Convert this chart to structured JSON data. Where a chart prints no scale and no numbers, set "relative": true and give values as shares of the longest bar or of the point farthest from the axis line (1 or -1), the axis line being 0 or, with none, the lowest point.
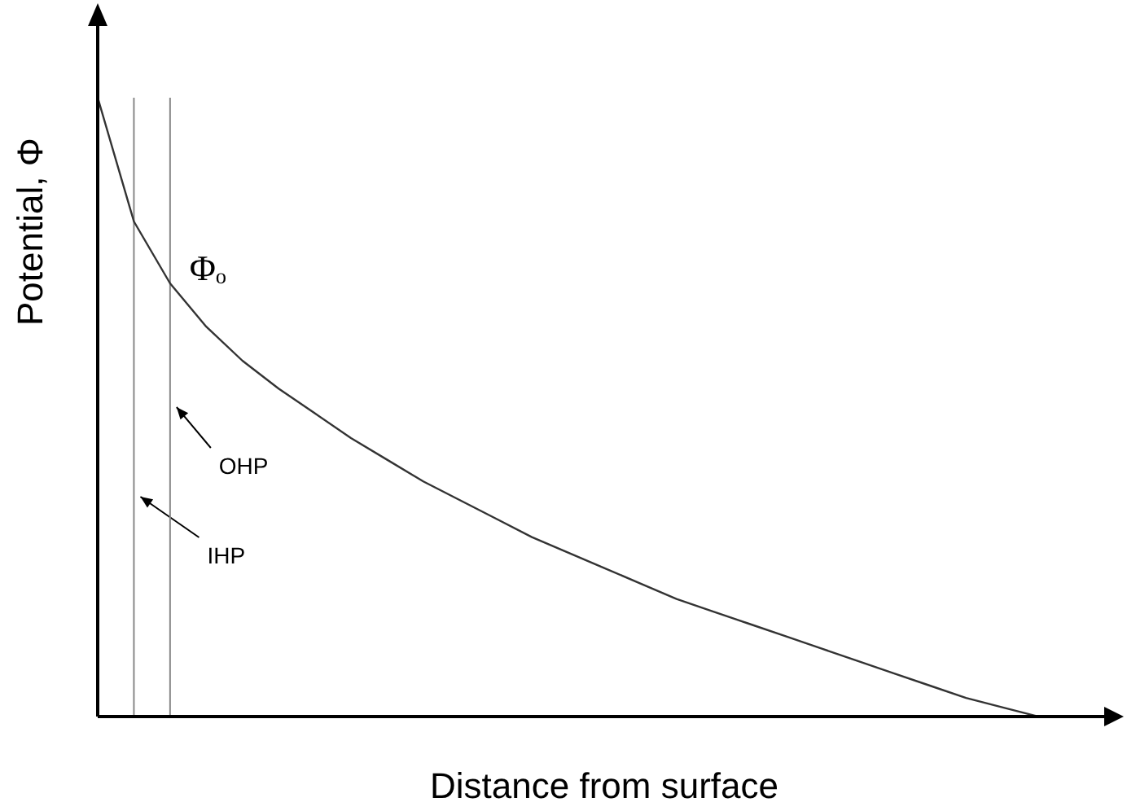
{
  "chart_data": {
    "type": "line",
    "relative": true,
    "xlabel": "Distance from surface",
    "ylabel": "Potential, Φ",
    "categories": [
      null,
      null,
      null,
      null,
      null,
      null,
      null,
      null,
      null,
      null,
      null,
      null,
      null,
      null,
      null,
      null,
      null,
      null,
      null,
      null,
      null,
      null,
      null,
      null,
      null,
      null,
      null,
      null,
      null
    ],
    "series": [
      {
        "color": "#333333",
        "values": [
          1.0,
          0.8,
          0.7,
          0.63,
          0.575,
          0.53,
          0.49,
          0.45,
          0.415,
          0.38,
          0.35,
          0.32,
          0.29,
          0.265,
          0.24,
          0.215,
          0.19,
          0.17,
          0.15,
          0.13,
          0.11,
          0.09,
          0.07,
          0.05,
          0.03,
          0.015,
          0,
          null,
          null
        ]
      }
    ],
    "annotations": [
      "Φₒ",
      "IHP",
      "OHP"
    ],
    "marker": "none",
    "line_style": "solid",
    "grid": false,
    "legend": false,
    "tick_labels": false
  }
}
